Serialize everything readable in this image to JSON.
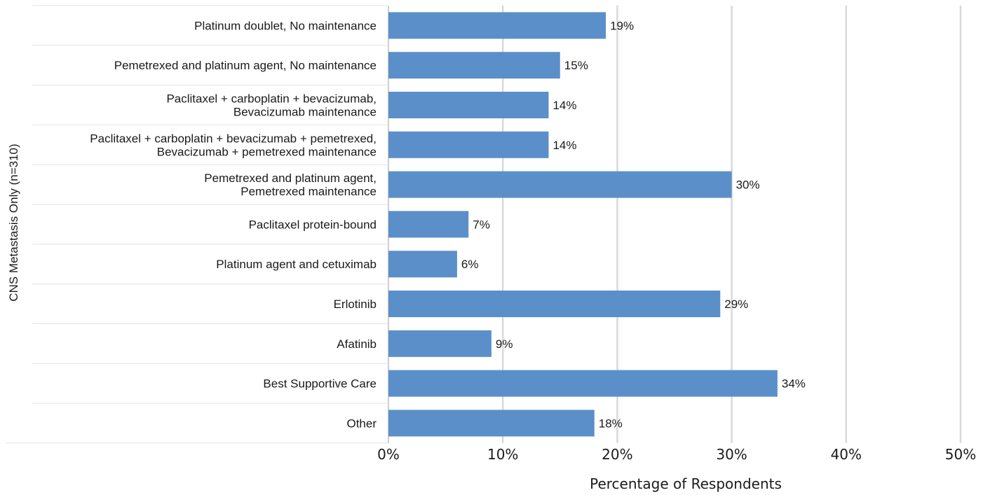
{
  "chart_data": {
    "type": "bar",
    "orientation": "horizontal",
    "group_label": "CNS Metastasis Only (n=310)",
    "categories": [
      [
        "Platinum doublet, No maintenance"
      ],
      [
        "Pemetrexed and platinum agent, No maintenance"
      ],
      [
        "Paclitaxel + carboplatin + bevacizumab,",
        "Bevacizumab maintenance"
      ],
      [
        "Paclitaxel + carboplatin + bevacizumab + pemetrexed,",
        "Bevacizumab + pemetrexed maintenance"
      ],
      [
        "Pemetrexed and platinum agent,",
        "Pemetrexed maintenance"
      ],
      [
        "Paclitaxel protein-bound"
      ],
      [
        "Platinum agent and cetuximab"
      ],
      [
        "Erlotinib"
      ],
      [
        "Afatinib"
      ],
      [
        "Best Supportive Care"
      ],
      [
        "Other"
      ]
    ],
    "values": [
      19,
      15,
      14,
      14,
      30,
      7,
      6,
      29,
      9,
      34,
      18
    ],
    "data_labels": [
      "19%",
      "15%",
      "14%",
      "14%",
      "30%",
      "7%",
      "6%",
      "29%",
      "9%",
      "34%",
      "18%"
    ],
    "xlabel": "Percentage of Respondents",
    "xlim": [
      0,
      50
    ],
    "xticks": [
      0,
      10,
      20,
      30,
      40,
      50
    ],
    "xtick_labels": [
      "0%",
      "10%",
      "20%",
      "30%",
      "40%",
      "50%"
    ],
    "grid": "vertical",
    "bar_color": "#5b8fc9",
    "grid_color": "#d9d9d9",
    "separator_color": "#e3e3e3"
  }
}
